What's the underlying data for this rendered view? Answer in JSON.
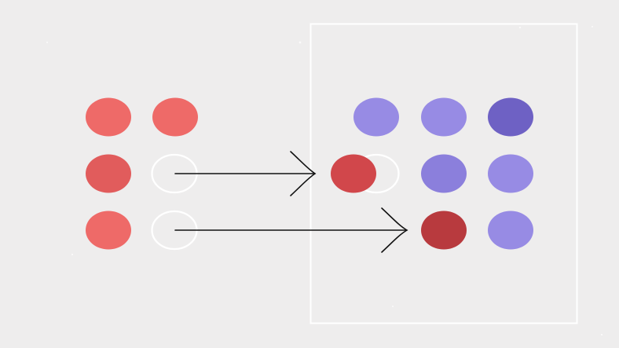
{
  "colors": {
    "background": "#eeeded",
    "frame": "#ffffff",
    "red_light": "#ee6a68",
    "red_mid": "#e15c5c",
    "red_dark": "#b83a3e",
    "purple_light": "#978be4",
    "purple_mid": "#8b7fdc",
    "purple_dark": "#6e61c4",
    "outline": "#ffffff",
    "arrow": "#111111"
  },
  "groups": {
    "left": {
      "rows": [
        [
          {
            "state": "filled",
            "tone": "red_light"
          },
          {
            "state": "filled",
            "tone": "red_light"
          }
        ],
        [
          {
            "state": "filled",
            "tone": "red_mid"
          },
          {
            "state": "empty",
            "tone": "outline"
          }
        ],
        [
          {
            "state": "filled",
            "tone": "red_light"
          },
          {
            "state": "empty",
            "tone": "outline"
          }
        ]
      ]
    },
    "right": {
      "rows": [
        [
          {
            "state": "filled",
            "tone": "purple_light"
          },
          {
            "state": "filled",
            "tone": "purple_light"
          },
          {
            "state": "filled",
            "tone": "purple_dark"
          }
        ],
        [
          {
            "state": "moved",
            "tone": "red_mid"
          },
          {
            "state": "filled",
            "tone": "purple_mid"
          },
          {
            "state": "filled",
            "tone": "purple_light"
          }
        ],
        [
          {
            "state": "moved",
            "tone": "red_dark"
          },
          {
            "state": "filled",
            "tone": "purple_light"
          }
        ]
      ]
    }
  },
  "arrows": [
    {
      "from": "left-row-2-empty",
      "to": "right-row-2-moved"
    },
    {
      "from": "left-row-3-empty",
      "to": "right-row-3-moved"
    }
  ]
}
